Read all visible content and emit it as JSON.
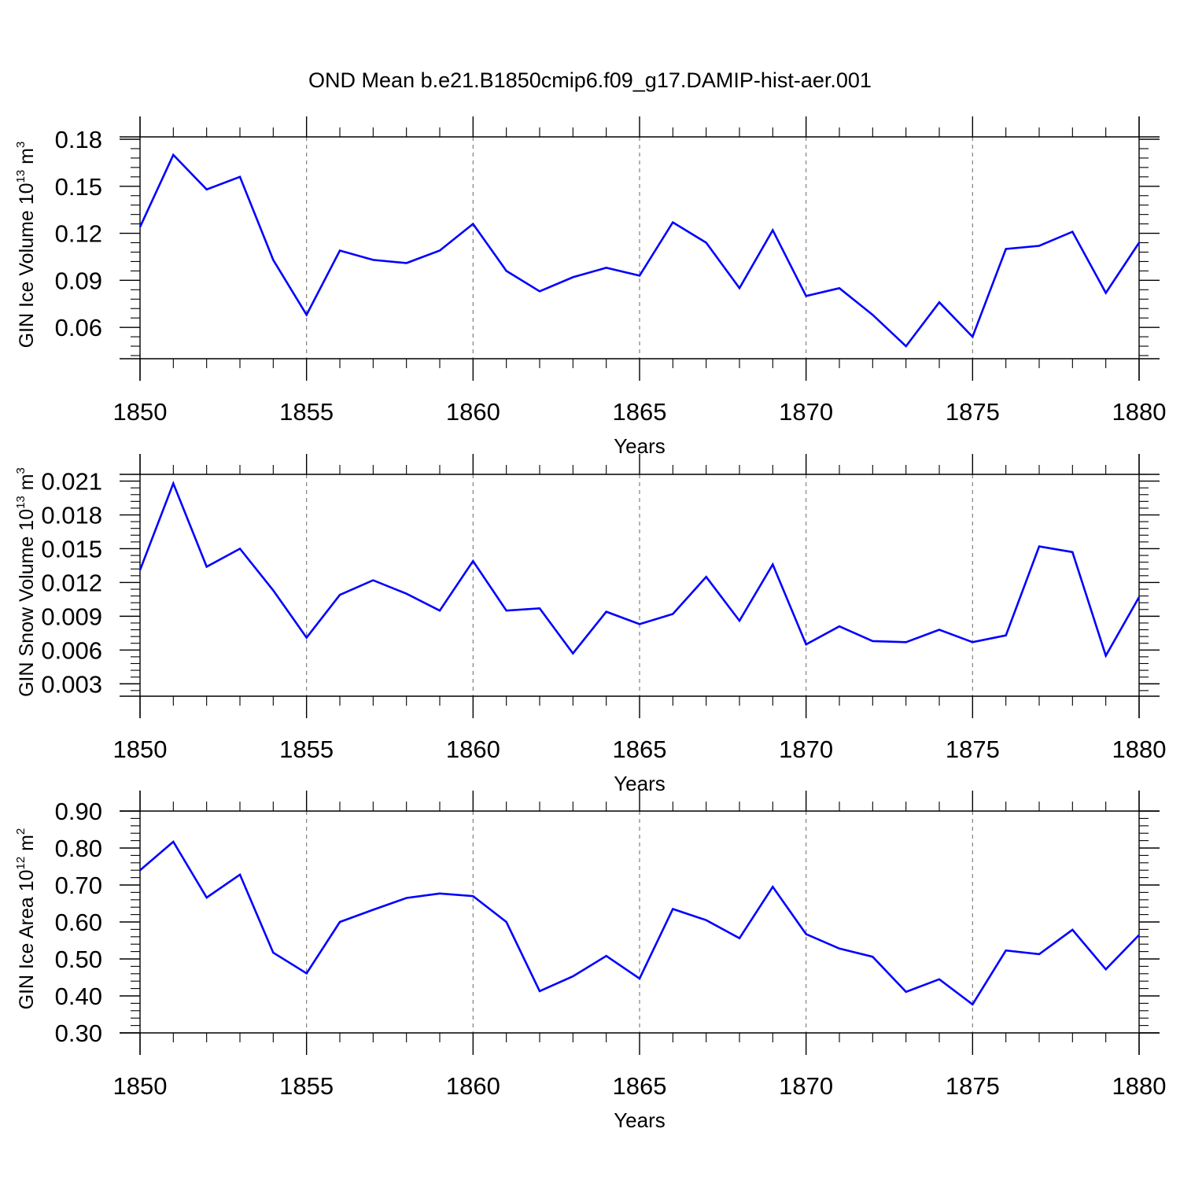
{
  "title": "OND Mean b.e21.B1850cmip6.f09_g17.DAMIP-hist-aer.001",
  "colors": {
    "line": "#0000ff",
    "axis": "#000000",
    "grid": "#808080"
  },
  "chart_data": [
    {
      "type": "line",
      "ylabel_main": "GIN Ice Volume 10",
      "ylabel_exp": "13",
      "ylabel_unit": " m",
      "ylabel_unit_exp": "3",
      "xlabel": "Years",
      "xlim": [
        1850,
        1880
      ],
      "ylim": [
        0.04,
        0.1815
      ],
      "yticks": [
        "0.06",
        "0.09",
        "0.12",
        "0.15",
        "0.18"
      ],
      "xticks": [
        "1850",
        "1855",
        "1860",
        "1865",
        "1870",
        "1875",
        "1880"
      ],
      "grid": "x-dashed",
      "x": [
        1850,
        1851,
        1852,
        1853,
        1854,
        1855,
        1856,
        1857,
        1858,
        1859,
        1860,
        1861,
        1862,
        1863,
        1864,
        1865,
        1866,
        1867,
        1868,
        1869,
        1870,
        1871,
        1872,
        1873,
        1874,
        1875,
        1876,
        1877,
        1878,
        1879,
        1880
      ],
      "values": [
        0.124,
        0.17,
        0.148,
        0.156,
        0.103,
        0.068,
        0.109,
        0.103,
        0.101,
        0.109,
        0.126,
        0.096,
        0.083,
        0.092,
        0.098,
        0.093,
        0.127,
        0.114,
        0.085,
        0.122,
        0.08,
        0.085,
        0.068,
        0.048,
        0.076,
        0.054,
        0.11,
        0.112,
        0.121,
        0.082,
        0.114
      ]
    },
    {
      "type": "line",
      "ylabel_main": "GIN Snow Volume 10",
      "ylabel_exp": "13",
      "ylabel_unit": " m",
      "ylabel_unit_exp": "3",
      "xlabel": "Years",
      "xlim": [
        1850,
        1880
      ],
      "ylim": [
        0.0019,
        0.0216
      ],
      "yticks": [
        "0.003",
        "0.006",
        "0.009",
        "0.012",
        "0.015",
        "0.018",
        "0.021"
      ],
      "xticks": [
        "1850",
        "1855",
        "1860",
        "1865",
        "1870",
        "1875",
        "1880"
      ],
      "grid": "x-dashed",
      "x": [
        1850,
        1851,
        1852,
        1853,
        1854,
        1855,
        1856,
        1857,
        1858,
        1859,
        1860,
        1861,
        1862,
        1863,
        1864,
        1865,
        1866,
        1867,
        1868,
        1869,
        1870,
        1871,
        1872,
        1873,
        1874,
        1875,
        1876,
        1877,
        1878,
        1879,
        1880
      ],
      "values": [
        0.0131,
        0.0208,
        0.0134,
        0.015,
        0.0113,
        0.0071,
        0.0109,
        0.0122,
        0.011,
        0.0095,
        0.0139,
        0.0095,
        0.0097,
        0.0057,
        0.0094,
        0.0083,
        0.0092,
        0.0125,
        0.0086,
        0.0136,
        0.0065,
        0.0081,
        0.0068,
        0.0067,
        0.0078,
        0.0067,
        0.0073,
        0.0152,
        0.0147,
        0.0055,
        0.0107
      ]
    },
    {
      "type": "line",
      "ylabel_main": "GIN Ice Area 10",
      "ylabel_exp": "12",
      "ylabel_unit": " m",
      "ylabel_unit_exp": "2",
      "xlabel": "Years",
      "xlim": [
        1850,
        1880
      ],
      "ylim": [
        0.3,
        0.9
      ],
      "yticks": [
        "0.30",
        "0.40",
        "0.50",
        "0.60",
        "0.70",
        "0.80",
        "0.90"
      ],
      "xticks": [
        "1850",
        "1855",
        "1860",
        "1865",
        "1870",
        "1875",
        "1880"
      ],
      "grid": "x-dashed",
      "x": [
        1850,
        1851,
        1852,
        1853,
        1854,
        1855,
        1856,
        1857,
        1858,
        1859,
        1860,
        1861,
        1862,
        1863,
        1864,
        1865,
        1866,
        1867,
        1868,
        1869,
        1870,
        1871,
        1872,
        1873,
        1874,
        1875,
        1876,
        1877,
        1878,
        1879,
        1880
      ],
      "values": [
        0.74,
        0.817,
        0.666,
        0.728,
        0.517,
        0.461,
        0.6,
        0.633,
        0.665,
        0.677,
        0.67,
        0.6,
        0.413,
        0.453,
        0.508,
        0.447,
        0.635,
        0.605,
        0.556,
        0.695,
        0.567,
        0.528,
        0.506,
        0.411,
        0.445,
        0.377,
        0.523,
        0.513,
        0.579,
        0.472,
        0.565
      ]
    }
  ]
}
